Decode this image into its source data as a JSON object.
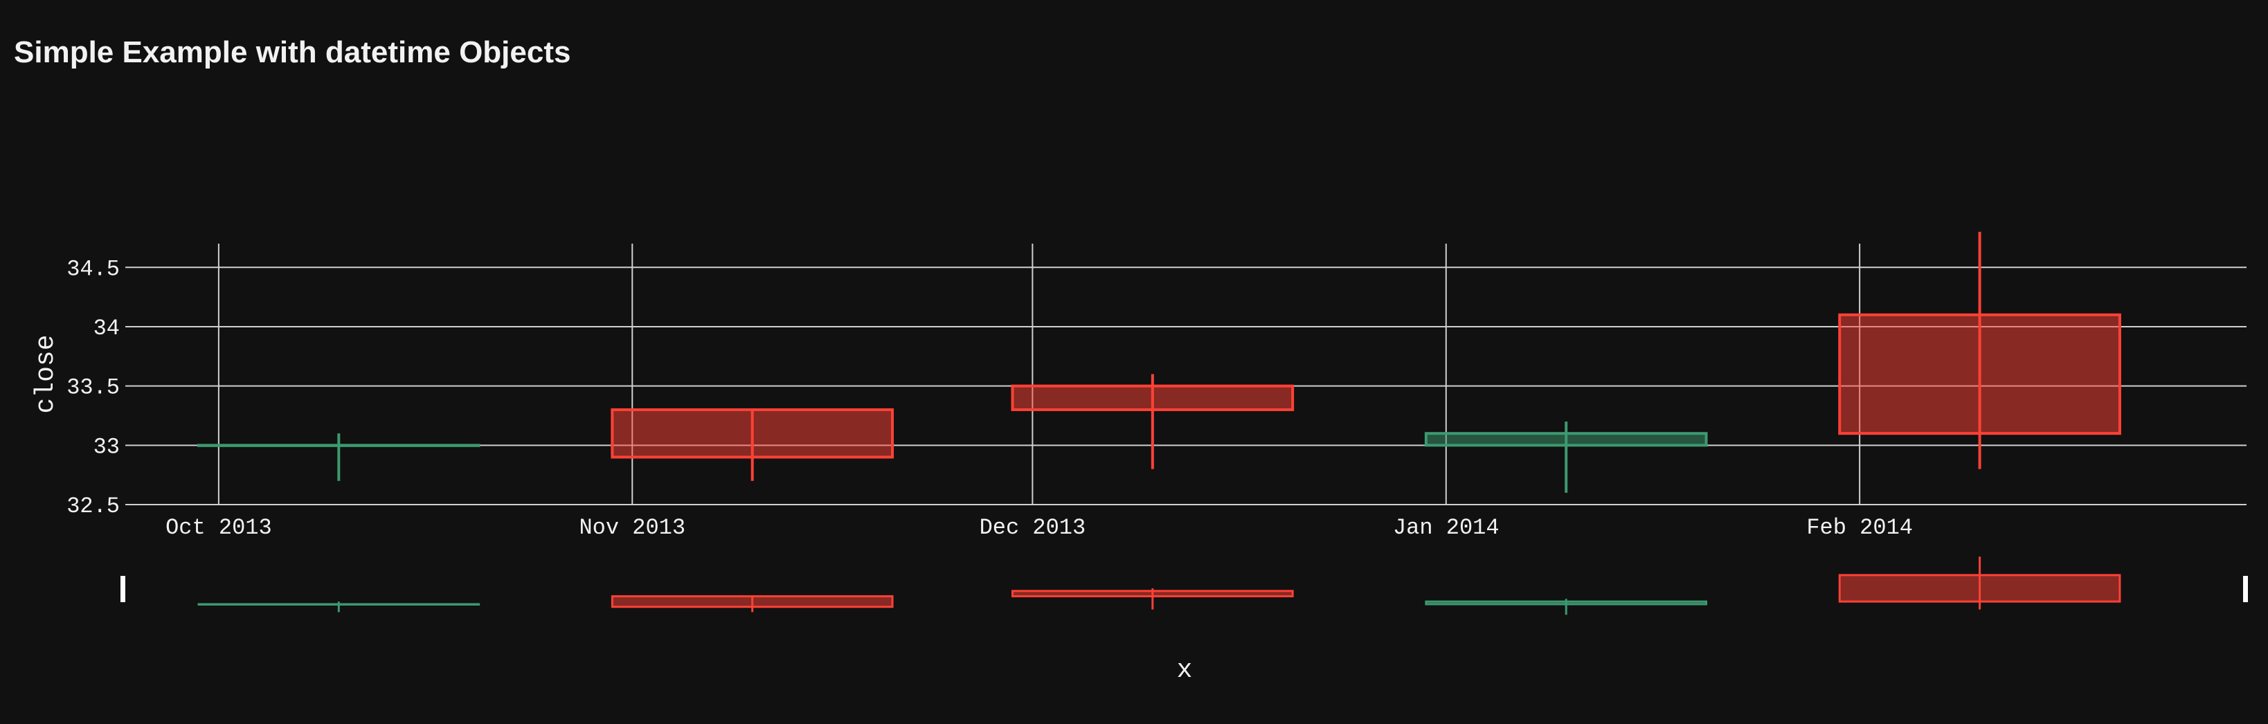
{
  "chart_data": {
    "type": "candlestick",
    "title": "Simple Example with datetime Objects",
    "xlabel": "x",
    "ylabel": "close",
    "x_range": [
      "2013-09-24",
      "2014-03-02"
    ],
    "ylim": [
      32.5,
      34.7
    ],
    "y_ticks": [
      32.5,
      33,
      33.5,
      34,
      34.5
    ],
    "y_tick_labels": [
      "32.5",
      "33",
      "33.5",
      "34",
      "34.5"
    ],
    "x_ticks": [
      "2013-10-01",
      "2013-11-01",
      "2013-12-01",
      "2014-01-01",
      "2014-02-01"
    ],
    "x_tick_labels": [
      "Oct 2013",
      "Nov 2013",
      "Dec 2013",
      "Jan 2014",
      "Feb 2014"
    ],
    "grid": true,
    "rangeslider": true,
    "increasing_color": "#3D9970",
    "decreasing_color": "#FF4136",
    "candles": [
      {
        "date": "2013-10-10",
        "open": 33.0,
        "high": 33.1,
        "low": 32.7,
        "close": 33.0
      },
      {
        "date": "2013-11-10",
        "open": 33.3,
        "high": 33.3,
        "low": 32.7,
        "close": 32.9
      },
      {
        "date": "2013-12-10",
        "open": 33.5,
        "high": 33.6,
        "low": 32.8,
        "close": 33.3
      },
      {
        "date": "2014-01-10",
        "open": 33.0,
        "high": 33.2,
        "low": 32.6,
        "close": 33.1
      },
      {
        "date": "2014-02-10",
        "open": 34.1,
        "high": 34.8,
        "low": 32.8,
        "close": 33.1
      }
    ]
  }
}
